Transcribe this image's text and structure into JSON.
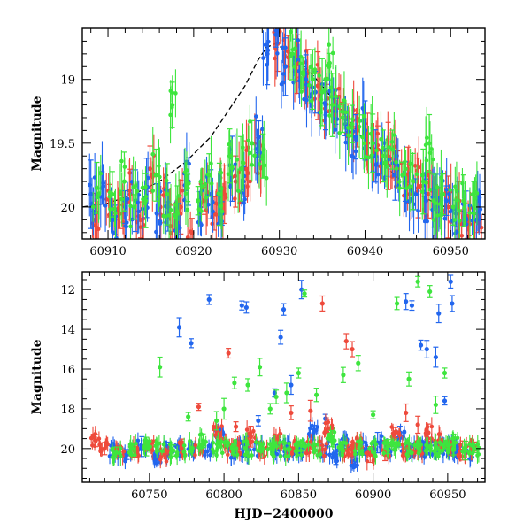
{
  "chart_data": [
    {
      "type": "scatter",
      "title": "",
      "xlabel": "",
      "ylabel": "Magnitude",
      "xlim": [
        60907,
        60954
      ],
      "ylim": [
        20.25,
        18.6
      ],
      "y_inverted": true,
      "x_ticks": [
        60910,
        60920,
        60930,
        60940,
        60950
      ],
      "x_tick_labels": [
        "60910",
        "60920",
        "60930",
        "60940",
        "60950"
      ],
      "y_ticks": [
        19,
        19.5,
        20
      ],
      "y_tick_labels": [
        "19",
        "19.5",
        "20"
      ],
      "grid": false,
      "legend": "none",
      "series": [
        {
          "color": "#ee4a3c",
          "values": [
            [
              60908.5,
              20.1
            ],
            [
              60910.2,
              19.95
            ],
            [
              60911.4,
              20.05
            ],
            [
              60912.6,
              19.9
            ],
            [
              60913.8,
              20.1
            ],
            [
              60914.9,
              19.7
            ],
            [
              60916.1,
              20.0
            ],
            [
              60917.3,
              20.15
            ],
            [
              60918.5,
              20.0
            ],
            [
              60919.8,
              20.2
            ],
            [
              60921.2,
              19.95
            ],
            [
              60922.4,
              20.05
            ],
            [
              60923.6,
              19.9
            ],
            [
              60924.9,
              19.8
            ],
            [
              60926.1,
              19.7
            ],
            [
              60927.5,
              19.6
            ],
            [
              60929.8,
              18.72
            ],
            [
              60931.0,
              18.78
            ],
            [
              60932.1,
              18.88
            ],
            [
              60933.3,
              18.95
            ],
            [
              60934.5,
              19.05
            ],
            [
              60935.6,
              19.15
            ],
            [
              60936.8,
              19.22
            ],
            [
              60938.0,
              19.3
            ],
            [
              60939.1,
              19.4
            ],
            [
              60940.3,
              19.5
            ],
            [
              60941.5,
              19.55
            ],
            [
              60942.7,
              19.6
            ],
            [
              60943.8,
              19.7
            ],
            [
              60945.0,
              19.75
            ],
            [
              60946.2,
              19.85
            ],
            [
              60947.4,
              19.9
            ],
            [
              60948.6,
              19.95
            ],
            [
              60949.7,
              20.0
            ],
            [
              60950.9,
              20.05
            ],
            [
              60952.1,
              20.1
            ],
            [
              60953.2,
              20.05
            ]
          ]
        },
        {
          "color": "#2266ee",
          "values": [
            [
              60908.0,
              19.9
            ],
            [
              60909.3,
              19.85
            ],
            [
              60910.8,
              20.1
            ],
            [
              60912.0,
              20.0
            ],
            [
              60913.2,
              19.95
            ],
            [
              60914.5,
              19.85
            ],
            [
              60915.7,
              20.05
            ],
            [
              60917.0,
              20.0
            ],
            [
              60918.2,
              20.15
            ],
            [
              60919.4,
              19.8
            ],
            [
              60920.7,
              20.0
            ],
            [
              60922.0,
              19.9
            ],
            [
              60923.3,
              20.05
            ],
            [
              60924.5,
              19.7
            ],
            [
              60925.8,
              19.8
            ],
            [
              60927.6,
              19.45
            ],
            [
              60928.6,
              18.8
            ],
            [
              60929.6,
              18.65
            ],
            [
              60930.7,
              18.9
            ],
            [
              60931.9,
              18.85
            ],
            [
              60933.1,
              19.0
            ],
            [
              60934.2,
              19.1
            ],
            [
              60935.4,
              19.2
            ],
            [
              60936.6,
              19.25
            ],
            [
              60937.7,
              19.35
            ],
            [
              60938.9,
              19.45
            ],
            [
              60940.0,
              19.4
            ],
            [
              60941.2,
              19.6
            ],
            [
              60942.4,
              19.65
            ],
            [
              60943.5,
              19.75
            ],
            [
              60944.7,
              19.8
            ],
            [
              60945.9,
              19.9
            ],
            [
              60947.1,
              19.95
            ],
            [
              60948.3,
              20.0
            ],
            [
              60949.5,
              19.95
            ],
            [
              60950.6,
              20.05
            ],
            [
              60951.8,
              20.1
            ],
            [
              60953.0,
              20.1
            ]
          ]
        },
        {
          "color": "#3ee53e",
          "values": [
            [
              60908.7,
              19.85
            ],
            [
              60910.5,
              19.9
            ],
            [
              60911.9,
              19.8
            ],
            [
              60913.1,
              20.0
            ],
            [
              60914.4,
              19.95
            ],
            [
              60915.6,
              19.75
            ],
            [
              60916.9,
              19.9
            ],
            [
              60918.1,
              20.05
            ],
            [
              60919.3,
              19.85
            ],
            [
              60920.5,
              19.95
            ],
            [
              60921.8,
              19.75
            ],
            [
              60923.0,
              19.9
            ],
            [
              60924.2,
              19.6
            ],
            [
              60925.5,
              19.7
            ],
            [
              60926.8,
              19.5
            ],
            [
              60928.1,
              19.6
            ],
            [
              60931.5,
              18.8
            ],
            [
              60932.7,
              18.95
            ],
            [
              60933.9,
              19.0
            ],
            [
              60935.0,
              19.1
            ],
            [
              60936.2,
              19.2
            ],
            [
              60937.4,
              19.3
            ],
            [
              60938.5,
              19.35
            ],
            [
              60939.7,
              19.45
            ],
            [
              60940.9,
              19.5
            ],
            [
              60942.1,
              19.6
            ],
            [
              60943.2,
              19.55
            ],
            [
              60944.4,
              19.75
            ],
            [
              60945.6,
              19.8
            ],
            [
              60946.8,
              19.8
            ],
            [
              60948.0,
              19.95
            ],
            [
              60949.1,
              19.9
            ],
            [
              60950.3,
              20.0
            ],
            [
              60951.5,
              19.95
            ],
            [
              60952.7,
              20.05
            ],
            [
              60917.5,
              19.2
            ],
            [
              60935.8,
              18.9
            ],
            [
              60947.5,
              19.5
            ]
          ]
        }
      ],
      "model_curve": {
        "color": "#000000",
        "style": "dashed-solid",
        "values": [
          [
            60907,
            20.0
          ],
          [
            60910,
            19.97
          ],
          [
            60913,
            19.9
          ],
          [
            60916,
            19.8
          ],
          [
            60919,
            19.65
          ],
          [
            60922,
            19.45
          ],
          [
            60924,
            19.25
          ],
          [
            60926,
            19.05
          ],
          [
            60927.5,
            18.85
          ],
          [
            60928.5,
            18.75
          ],
          [
            60929.5,
            18.72
          ],
          [
            60931,
            18.78
          ],
          [
            60933,
            18.9
          ],
          [
            60935,
            19.05
          ],
          [
            60937,
            19.22
          ],
          [
            60939,
            19.4
          ],
          [
            60941,
            19.57
          ],
          [
            60943,
            19.72
          ],
          [
            60945,
            19.84
          ],
          [
            60947,
            19.93
          ],
          [
            60949,
            19.99
          ],
          [
            60951,
            20.03
          ],
          [
            60954,
            20.06
          ]
        ]
      }
    },
    {
      "type": "scatter",
      "title": "",
      "xlabel": "HJD−2400000",
      "ylabel": "Magnitude",
      "xlim": [
        60705,
        60975
      ],
      "ylim": [
        21.7,
        11.1
      ],
      "y_inverted": true,
      "x_ticks": [
        60750,
        60800,
        60850,
        60900,
        60950
      ],
      "x_tick_labels": [
        "60750",
        "60800",
        "60850",
        "60900",
        "60950"
      ],
      "y_ticks": [
        12,
        14,
        16,
        18,
        20
      ],
      "y_tick_labels": [
        "12",
        "14",
        "16",
        "18",
        "20"
      ],
      "grid": false,
      "legend": "none",
      "series": [
        {
          "color": "#2266ee",
          "values": [
            [
              60726,
              20.1
            ],
            [
              60735,
              20.3
            ],
            [
              60745,
              19.9
            ],
            [
              60755,
              20.4
            ],
            [
              60763,
              20.0
            ],
            [
              60770,
              13.9
            ],
            [
              60778,
              14.7
            ],
            [
              60790,
              12.5
            ],
            [
              60797,
              19.3
            ],
            [
              60806,
              20.2
            ],
            [
              60812,
              12.8
            ],
            [
              60815,
              12.9
            ],
            [
              60823,
              18.6
            ],
            [
              60834,
              17.2
            ],
            [
              60838,
              14.4
            ],
            [
              60840,
              13.0
            ],
            [
              60845,
              16.8
            ],
            [
              60852,
              12.0
            ],
            [
              60860,
              19.2
            ],
            [
              60868,
              18.5
            ],
            [
              60875,
              20.3
            ],
            [
              60882,
              19.8
            ],
            [
              60888,
              20.6
            ],
            [
              60893,
              20.0
            ],
            [
              60903,
              19.7
            ],
            [
              60910,
              20.0
            ],
            [
              60918,
              19.4
            ],
            [
              60922,
              12.6
            ],
            [
              60926,
              12.8
            ],
            [
              60932,
              14.8
            ],
            [
              60936,
              15.0
            ],
            [
              60942,
              15.4
            ],
            [
              60944,
              13.2
            ],
            [
              60948,
              17.6
            ],
            [
              60952,
              11.6
            ],
            [
              60953,
              12.7
            ],
            [
              60958,
              20.1
            ],
            [
              60965,
              20.2
            ]
          ]
        },
        {
          "color": "#ee4a3c",
          "values": [
            [
              60714,
              19.6
            ],
            [
              60720,
              20.0
            ],
            [
              60730,
              20.2
            ],
            [
              60740,
              20.1
            ],
            [
              60750,
              19.9
            ],
            [
              60760,
              20.3
            ],
            [
              60772,
              20.0
            ],
            [
              60783,
              17.9
            ],
            [
              60796,
              19.2
            ],
            [
              60803,
              15.2
            ],
            [
              60808,
              18.9
            ],
            [
              60818,
              19.4
            ],
            [
              60826,
              20.1
            ],
            [
              60836,
              19.6
            ],
            [
              60845,
              18.2
            ],
            [
              60858,
              18.1
            ],
            [
              60866,
              12.7
            ],
            [
              60870,
              19.0
            ],
            [
              60882,
              14.6
            ],
            [
              60886,
              15.0
            ],
            [
              60890,
              19.8
            ],
            [
              60898,
              20.3
            ],
            [
              60908,
              20.1
            ],
            [
              60915,
              19.2
            ],
            [
              60922,
              18.2
            ],
            [
              60930,
              18.8
            ],
            [
              60937,
              19.2
            ],
            [
              60944,
              19.6
            ],
            [
              60952,
              20.0
            ],
            [
              60960,
              20.1
            ],
            [
              60968,
              19.9
            ]
          ]
        },
        {
          "color": "#3ee53e",
          "values": [
            [
              60728,
              20.2
            ],
            [
              60738,
              20.0
            ],
            [
              60748,
              19.9
            ],
            [
              60757,
              15.9
            ],
            [
              60766,
              20.1
            ],
            [
              60776,
              18.4
            ],
            [
              60786,
              19.6
            ],
            [
              60795,
              18.6
            ],
            [
              60800,
              18.0
            ],
            [
              60807,
              16.7
            ],
            [
              60816,
              16.8
            ],
            [
              60824,
              15.9
            ],
            [
              60831,
              18.0
            ],
            [
              60835,
              17.4
            ],
            [
              60842,
              17.2
            ],
            [
              60850,
              16.2
            ],
            [
              60854,
              12.2
            ],
            [
              60862,
              17.3
            ],
            [
              60872,
              19.5
            ],
            [
              60880,
              16.3
            ],
            [
              60890,
              15.7
            ],
            [
              60900,
              18.3
            ],
            [
              60910,
              19.9
            ],
            [
              60916,
              12.7
            ],
            [
              60924,
              16.5
            ],
            [
              60930,
              11.6
            ],
            [
              60938,
              12.1
            ],
            [
              60942,
              17.8
            ],
            [
              60948,
              16.2
            ],
            [
              60954,
              19.8
            ],
            [
              60962,
              20.1
            ],
            [
              60968,
              20.0
            ]
          ]
        }
      ]
    }
  ]
}
